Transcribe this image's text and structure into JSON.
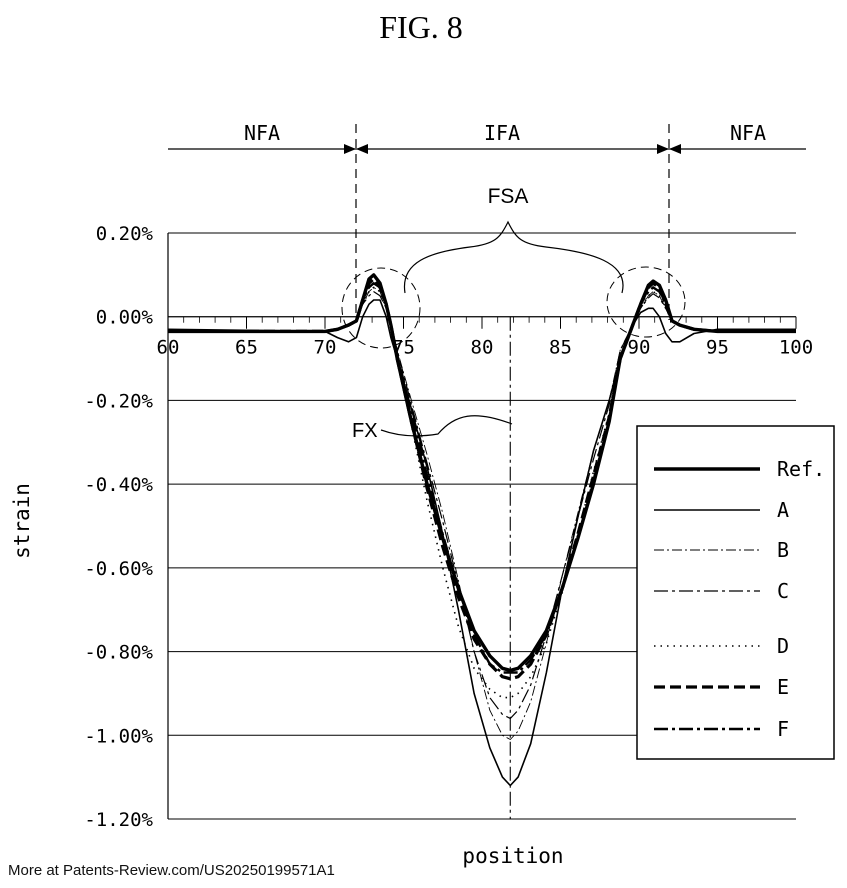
{
  "figure": {
    "title": "FIG. 8"
  },
  "watermark": "More at Patents-Review.com/US20250199571A1",
  "regions": {
    "left": "NFA",
    "middle": "IFA",
    "right": "NFA",
    "fsa": "FSA",
    "fx": "FX"
  },
  "chart_data": {
    "type": "line",
    "xlabel": "position",
    "ylabel": "strain",
    "xlim": [
      60,
      100
    ],
    "ylim": [
      -1.2,
      0.2
    ],
    "x_ticks": [
      60,
      65,
      70,
      75,
      80,
      85,
      90,
      95,
      100
    ],
    "x_tick_labels": [
      "60",
      "65",
      "70",
      "75",
      "80",
      "85",
      "90",
      "95",
      "100"
    ],
    "y_ticks": [
      0.2,
      0,
      -0.2,
      -0.4,
      -0.6,
      -0.8,
      -1.0,
      -1.2
    ],
    "y_tick_labels": [
      "0.20%",
      "0.00%",
      "-0.20%",
      "-0.40%",
      "-0.60%",
      "-0.80%",
      "-1.00%",
      "-1.20%"
    ],
    "grid": {
      "horizontal": true,
      "vertical": false
    },
    "legend_position": "right",
    "boundaries_x": [
      71.7,
      91.5
    ],
    "center_x": 81.8,
    "series": [
      {
        "name": "Ref.",
        "style": "thick-solid",
        "x": [
          60,
          70,
          70.8,
          71.5,
          72,
          72.4,
          72.8,
          73.1,
          73.5,
          73.9,
          74.2,
          74.6,
          75.5,
          76.5,
          77.5,
          78.5,
          79.5,
          80.5,
          81.3,
          81.8,
          82.3,
          83.1,
          84.1,
          85.1,
          86.1,
          87.1,
          88.1,
          88.8,
          89.6,
          90.1,
          90.6,
          90.9,
          91.3,
          91.7,
          92.1,
          92.6,
          93.5,
          95,
          100
        ],
        "y": [
          -0.035,
          -0.035,
          -0.03,
          -0.02,
          -0.01,
          0.04,
          0.09,
          0.1,
          0.08,
          0.03,
          -0.02,
          -0.1,
          -0.25,
          -0.4,
          -0.53,
          -0.65,
          -0.75,
          -0.81,
          -0.84,
          -0.845,
          -0.84,
          -0.81,
          -0.75,
          -0.65,
          -0.53,
          -0.4,
          -0.25,
          -0.1,
          -0.02,
          0.03,
          0.075,
          0.085,
          0.075,
          0.04,
          -0.01,
          -0.02,
          -0.03,
          -0.035,
          -0.035
        ]
      },
      {
        "name": "A",
        "style": "solid",
        "x": [
          60,
          70,
          70.8,
          71.5,
          72,
          72.4,
          72.8,
          73.1,
          73.5,
          73.9,
          74.2,
          74.6,
          75.5,
          76.5,
          77.5,
          78.5,
          79.5,
          80.5,
          81.3,
          81.8,
          82.3,
          83.1,
          84.1,
          85.1,
          86.1,
          87.1,
          88.1,
          88.8,
          89.6,
          90.1,
          90.6,
          90.9,
          91.3,
          91.7,
          92.1,
          92.6,
          93.5,
          95,
          100
        ],
        "y": [
          -0.03,
          -0.035,
          -0.05,
          -0.06,
          -0.05,
          0.0,
          0.03,
          0.04,
          0.04,
          0.0,
          -0.05,
          -0.1,
          -0.22,
          -0.36,
          -0.52,
          -0.7,
          -0.9,
          -1.03,
          -1.1,
          -1.12,
          -1.1,
          -1.02,
          -0.85,
          -0.65,
          -0.48,
          -0.32,
          -0.2,
          -0.1,
          -0.02,
          0.01,
          0.02,
          0.02,
          0.0,
          -0.04,
          -0.06,
          -0.06,
          -0.04,
          -0.03,
          -0.03
        ]
      },
      {
        "name": "B",
        "style": "dash-dot-thin",
        "x": [
          60,
          70,
          70.8,
          71.5,
          72,
          72.4,
          72.8,
          73.1,
          73.5,
          73.9,
          74.2,
          74.6,
          75.5,
          76.5,
          77.5,
          78.5,
          79.5,
          80.5,
          81.3,
          81.8,
          82.3,
          83.1,
          84.1,
          85.1,
          86.1,
          87.1,
          88.1,
          88.8,
          89.6,
          90.1,
          90.6,
          90.9,
          91.3,
          91.7,
          92.1,
          92.6,
          93.5,
          95,
          100
        ],
        "y": [
          -0.035,
          -0.035,
          -0.03,
          -0.02,
          -0.01,
          0.03,
          0.06,
          0.07,
          0.06,
          0.02,
          -0.02,
          -0.08,
          -0.2,
          -0.33,
          -0.47,
          -0.63,
          -0.8,
          -0.94,
          -1.0,
          -1.01,
          -0.99,
          -0.92,
          -0.78,
          -0.62,
          -0.47,
          -0.32,
          -0.2,
          -0.08,
          -0.02,
          0.02,
          0.05,
          0.06,
          0.05,
          0.02,
          -0.01,
          -0.02,
          -0.03,
          -0.035,
          -0.035
        ]
      },
      {
        "name": "C",
        "style": "dash-dot",
        "x": [
          60,
          70,
          70.8,
          71.5,
          72,
          72.4,
          72.8,
          73.1,
          73.5,
          73.9,
          74.2,
          74.6,
          75.5,
          76.5,
          77.5,
          78.5,
          79.5,
          80.5,
          81.3,
          81.8,
          82.3,
          83.1,
          84.1,
          85.1,
          86.1,
          87.1,
          88.1,
          88.8,
          89.6,
          90.1,
          90.6,
          90.9,
          91.3,
          91.7,
          92.1,
          92.6,
          93.5,
          95,
          100
        ],
        "y": [
          -0.035,
          -0.035,
          -0.03,
          -0.02,
          -0.01,
          0.03,
          0.05,
          0.06,
          0.05,
          0.02,
          -0.02,
          -0.08,
          -0.21,
          -0.35,
          -0.49,
          -0.64,
          -0.8,
          -0.91,
          -0.95,
          -0.96,
          -0.94,
          -0.88,
          -0.76,
          -0.62,
          -0.48,
          -0.34,
          -0.21,
          -0.08,
          -0.02,
          0.02,
          0.045,
          0.055,
          0.045,
          0.02,
          -0.01,
          -0.02,
          -0.03,
          -0.035,
          -0.035
        ]
      },
      {
        "name": "D",
        "style": "dotted",
        "x": [
          60,
          70,
          70.8,
          71.5,
          72,
          72.4,
          72.8,
          73.1,
          73.5,
          73.9,
          74.2,
          74.6,
          75.5,
          76.5,
          77.5,
          78.5,
          79.5,
          80.5,
          81.3,
          81.8,
          82.3,
          83.1,
          84.1,
          85.1,
          86.1,
          87.1,
          88.1,
          88.8,
          89.6,
          90.1,
          90.6,
          90.9,
          91.3,
          91.7,
          92.1,
          92.6,
          93.5,
          95,
          100
        ],
        "y": [
          -0.035,
          -0.035,
          -0.03,
          -0.02,
          -0.01,
          0.03,
          0.06,
          0.07,
          0.06,
          0.02,
          -0.02,
          -0.1,
          -0.26,
          -0.44,
          -0.6,
          -0.74,
          -0.84,
          -0.89,
          -0.91,
          -0.91,
          -0.9,
          -0.86,
          -0.78,
          -0.66,
          -0.52,
          -0.37,
          -0.23,
          -0.09,
          -0.02,
          0.02,
          0.05,
          0.06,
          0.05,
          0.02,
          -0.01,
          -0.02,
          -0.03,
          -0.035,
          -0.035
        ]
      },
      {
        "name": "E",
        "style": "thick-dashed",
        "x": [
          60,
          70,
          70.8,
          71.5,
          72,
          72.4,
          72.8,
          73.1,
          73.5,
          73.9,
          74.2,
          74.6,
          75.5,
          76.5,
          77.5,
          78.5,
          79.5,
          80.5,
          81.3,
          81.8,
          82.3,
          83.1,
          84.1,
          85.1,
          86.1,
          87.1,
          88.1,
          88.8,
          89.6,
          90.1,
          90.6,
          90.9,
          91.3,
          91.7,
          92.1,
          92.6,
          93.5,
          95,
          100
        ],
        "y": [
          -0.035,
          -0.035,
          -0.03,
          -0.02,
          -0.01,
          0.04,
          0.08,
          0.09,
          0.07,
          0.03,
          -0.02,
          -0.1,
          -0.25,
          -0.41,
          -0.55,
          -0.67,
          -0.77,
          -0.83,
          -0.86,
          -0.865,
          -0.86,
          -0.83,
          -0.76,
          -0.65,
          -0.52,
          -0.38,
          -0.24,
          -0.1,
          -0.02,
          0.03,
          0.07,
          0.08,
          0.07,
          0.03,
          -0.01,
          -0.02,
          -0.03,
          -0.035,
          -0.035
        ]
      },
      {
        "name": "F",
        "style": "thick-dash-dot",
        "x": [
          60,
          70,
          70.8,
          71.5,
          72,
          72.4,
          72.8,
          73.1,
          73.5,
          73.9,
          74.2,
          74.6,
          75.5,
          76.5,
          77.5,
          78.5,
          79.5,
          80.5,
          81.3,
          81.8,
          82.3,
          83.1,
          84.1,
          85.1,
          86.1,
          87.1,
          88.1,
          88.8,
          89.6,
          90.1,
          90.6,
          90.9,
          91.3,
          91.7,
          92.1,
          92.6,
          93.5,
          95,
          100
        ],
        "y": [
          -0.035,
          -0.035,
          -0.03,
          -0.02,
          -0.01,
          0.04,
          0.07,
          0.08,
          0.07,
          0.03,
          -0.02,
          -0.09,
          -0.23,
          -0.38,
          -0.52,
          -0.65,
          -0.76,
          -0.83,
          -0.85,
          -0.85,
          -0.85,
          -0.82,
          -0.76,
          -0.65,
          -0.53,
          -0.39,
          -0.25,
          -0.1,
          -0.02,
          0.03,
          0.06,
          0.07,
          0.06,
          0.03,
          -0.01,
          -0.02,
          -0.03,
          -0.035,
          -0.035
        ]
      }
    ]
  }
}
